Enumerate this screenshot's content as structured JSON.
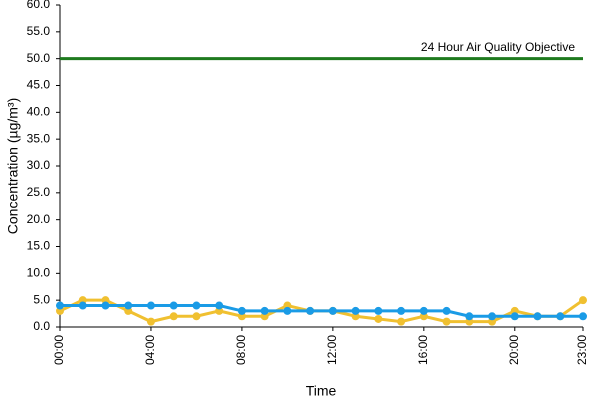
{
  "chart_data": {
    "type": "line",
    "y_label": "Concentration (µg/m³)",
    "x_label": "Time",
    "categories": [
      "00:00",
      null,
      null,
      null,
      "04:00",
      null,
      null,
      null,
      "08:00",
      null,
      null,
      null,
      "12:00",
      null,
      null,
      null,
      "16:00",
      null,
      null,
      null,
      "20:00",
      null,
      null,
      "23:00"
    ],
    "series": [
      {
        "color": "#f0c030",
        "values": [
          3,
          5,
          5,
          3,
          1,
          2,
          2,
          3,
          2,
          2,
          4,
          3,
          3,
          2,
          1.5,
          1,
          2,
          1,
          1,
          1,
          3,
          2,
          2,
          5
        ]
      },
      {
        "color": "#1a9be6",
        "values": [
          4,
          4,
          4,
          4,
          4,
          4,
          4,
          4,
          3,
          3,
          3,
          3,
          3,
          3,
          3,
          3,
          3,
          3,
          2,
          2,
          2,
          2,
          2,
          2
        ]
      }
    ],
    "reference_line": {
      "value": 50,
      "label": "24 Hour Air Quality Objective",
      "color": "#1e7a1e"
    },
    "ylim": [
      0,
      60
    ],
    "yticks": [
      {
        "value": 0,
        "label": "0.0"
      },
      {
        "value": 5,
        "label": "5.0"
      },
      {
        "value": 10,
        "label": "10.0"
      },
      {
        "value": 15,
        "label": "15.0"
      },
      {
        "value": 20,
        "label": "20.0"
      },
      {
        "value": 25,
        "label": "25.0"
      },
      {
        "value": 30,
        "label": "30.0"
      },
      {
        "value": 35,
        "label": "35.0"
      },
      {
        "value": 40,
        "label": "40.0"
      },
      {
        "value": 45,
        "label": "45.0"
      },
      {
        "value": 50,
        "label": "50.0"
      },
      {
        "value": 55,
        "label": "55.0"
      },
      {
        "value": 60,
        "label": "60.0"
      }
    ],
    "grid": false
  }
}
